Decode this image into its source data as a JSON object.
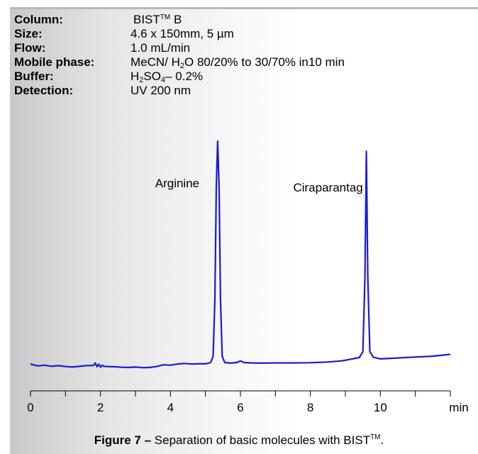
{
  "conditions": {
    "column_label": "Column:",
    "column_prefix": "BIST",
    "column_tm": "TM",
    "column_suffix": " B",
    "size_label": "Size:",
    "size_value": "4.6 x 150mm, 5 µm",
    "flow_label": "Flow:",
    "flow_value": "1.0 mL/min",
    "mobile_label": "Mobile phase:",
    "mobile_a": "MeCN/ H",
    "mobile_sub": "2",
    "mobile_b": "O 80/20% to 30/70% in10 min",
    "buffer_label": "Buffer:",
    "buffer_a": "H",
    "buffer_sub1": "2",
    "buffer_b": "SO",
    "buffer_sub2": "4",
    "buffer_c": "– 0.2%",
    "detection_label": "Detection:",
    "detection_value": "UV 200  nm"
  },
  "caption": {
    "bold": "Figure 7 –",
    "text": " Separation of basic molecules with BIST",
    "tm": "TM",
    "end": "."
  },
  "chart_data": {
    "type": "line",
    "xlabel": "min",
    "xlim": [
      0,
      12
    ],
    "ylim": [
      0,
      100
    ],
    "x_ticks": [
      0,
      2,
      4,
      6,
      8,
      10
    ],
    "minor_ticks": [
      1,
      3,
      5,
      7,
      9,
      11,
      12
    ],
    "annotations": [
      {
        "text": "Arginine",
        "x": 5.35
      },
      {
        "text": "Ciraparantag",
        "x": 9.6
      }
    ],
    "series": [
      {
        "color": "#1a1ad6",
        "x": [
          0,
          0.2,
          0.4,
          0.6,
          0.8,
          1.0,
          1.2,
          1.4,
          1.6,
          1.8,
          1.85,
          1.9,
          1.95,
          2.0,
          2.05,
          2.1,
          2.2,
          2.4,
          2.6,
          2.8,
          3.0,
          3.2,
          3.4,
          3.6,
          3.8,
          4.0,
          4.2,
          4.4,
          4.6,
          4.8,
          5.0,
          5.15,
          5.22,
          5.27,
          5.31,
          5.35,
          5.39,
          5.43,
          5.48,
          5.55,
          5.7,
          5.9,
          6.0,
          6.1,
          6.3,
          6.6,
          7.0,
          7.5,
          8.0,
          8.5,
          8.9,
          9.2,
          9.4,
          9.5,
          9.56,
          9.6,
          9.64,
          9.7,
          9.8,
          10.0,
          10.5,
          11.0,
          11.5,
          12.0
        ],
        "y": [
          1.5,
          0.7,
          1.0,
          0.5,
          0.8,
          0.4,
          0.2,
          0.5,
          0.8,
          0.9,
          2.0,
          0.3,
          1.5,
          0.1,
          1.0,
          0.5,
          0.4,
          0.3,
          0.1,
          0.0,
          0.2,
          -0.1,
          0.0,
          0.4,
          1.2,
          1.0,
          1.5,
          1.8,
          1.5,
          1.6,
          1.6,
          2.2,
          5.0,
          30.0,
          80.0,
          100.0,
          80.0,
          30.0,
          5.0,
          2.2,
          1.9,
          2.2,
          2.9,
          2.2,
          2.0,
          1.9,
          2.0,
          2.0,
          2.1,
          2.4,
          2.9,
          3.8,
          4.4,
          7.0,
          40.0,
          95.5,
          40.0,
          7.0,
          4.5,
          3.8,
          4.2,
          4.6,
          5.0,
          5.8
        ]
      }
    ]
  }
}
